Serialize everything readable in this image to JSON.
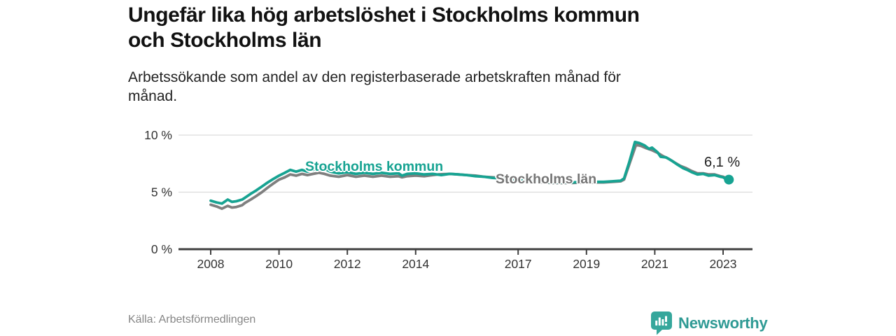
{
  "header": {
    "title_lines": [
      "Ungefär lika hög arbetslöshet i Stockholms kommun",
      "och Stockholms län"
    ],
    "subtitle_lines": [
      "Arbetssökande som andel av den registerbaserade arbetskraften månad för",
      "månad."
    ]
  },
  "chart_data": {
    "type": "line",
    "title": "Ungefär lika hög arbetslöshet i Stockholms kommun och Stockholms län",
    "subtitle": "Arbetssökande som andel av den registerbaserade arbetskraften månad för månad.",
    "xlabel": "",
    "ylabel": "",
    "grid": "horizontal",
    "legend_position": "inline-on-line",
    "axis_color": "#404040",
    "grid_color": "#dcdcdc",
    "tick_label_color": "#333333",
    "x_axis": {
      "range": [
        2007.2,
        2023.8
      ],
      "ticks": [
        {
          "value": 2008,
          "label": "2008"
        },
        {
          "value": 2010,
          "label": "2010"
        },
        {
          "value": 2012,
          "label": "2012"
        },
        {
          "value": 2014,
          "label": "2014"
        },
        {
          "value": 2017,
          "label": "2017"
        },
        {
          "value": 2019,
          "label": "2019"
        },
        {
          "value": 2021,
          "label": "2021"
        },
        {
          "value": 2023,
          "label": "2023"
        }
      ]
    },
    "y_axis": {
      "range": [
        0,
        10.2
      ],
      "ticks": [
        {
          "value": 0,
          "label": "0 %"
        },
        {
          "value": 5,
          "label": "5 %"
        },
        {
          "value": 10,
          "label": "10 %"
        }
      ],
      "gridlines": [
        5,
        10
      ]
    },
    "series": [
      {
        "name": "Stockholms kommun",
        "color": "#17a392",
        "end_dot": true,
        "end_label": "6,1 %",
        "points": [
          [
            2008,
            4.25
          ],
          [
            2008.17,
            4.1
          ],
          [
            2008.33,
            4.0
          ],
          [
            2008.5,
            4.35
          ],
          [
            2008.62,
            4.15
          ],
          [
            2008.75,
            4.2
          ],
          [
            2008.92,
            4.35
          ],
          [
            2009,
            4.5
          ],
          [
            2009.17,
            4.85
          ],
          [
            2009.33,
            5.15
          ],
          [
            2009.5,
            5.5
          ],
          [
            2009.67,
            5.85
          ],
          [
            2009.83,
            6.15
          ],
          [
            2010,
            6.45
          ],
          [
            2010.17,
            6.7
          ],
          [
            2010.33,
            6.95
          ],
          [
            2010.5,
            6.8
          ],
          [
            2010.67,
            6.95
          ],
          [
            2010.83,
            6.8
          ],
          [
            2011,
            6.95
          ],
          [
            2011.17,
            7.2
          ],
          [
            2011.33,
            7.05
          ],
          [
            2011.5,
            6.8
          ],
          [
            2011.75,
            6.65
          ],
          [
            2012,
            6.75
          ],
          [
            2012.25,
            6.6
          ],
          [
            2012.5,
            6.7
          ],
          [
            2012.75,
            6.6
          ],
          [
            2013,
            6.7
          ],
          [
            2013.25,
            6.6
          ],
          [
            2013.5,
            6.65
          ],
          [
            2013.6,
            6.45
          ],
          [
            2013.75,
            6.6
          ],
          [
            2014,
            6.65
          ],
          [
            2014.25,
            6.55
          ],
          [
            2014.5,
            6.6
          ],
          [
            2014.75,
            6.5
          ],
          [
            2015,
            6.6
          ],
          [
            2015.25,
            6.55
          ],
          [
            2015.5,
            6.5
          ],
          [
            2015.75,
            6.4
          ],
          [
            2016,
            6.35
          ],
          [
            2016.25,
            6.25
          ],
          [
            2016.5,
            6.2
          ],
          [
            2016.75,
            6.1
          ],
          [
            2017,
            6.05
          ],
          [
            2017.25,
            6.0
          ],
          [
            2017.5,
            5.95
          ],
          [
            2017.75,
            5.9
          ],
          [
            2018,
            5.85
          ],
          [
            2018.5,
            5.85
          ],
          [
            2019,
            5.9
          ],
          [
            2019.5,
            5.9
          ],
          [
            2019.75,
            5.95
          ],
          [
            2020,
            6.0
          ],
          [
            2020.1,
            6.2
          ],
          [
            2020.25,
            7.6
          ],
          [
            2020.42,
            9.4
          ],
          [
            2020.55,
            9.3
          ],
          [
            2020.7,
            9.1
          ],
          [
            2020.83,
            8.8
          ],
          [
            2020.92,
            8.9
          ],
          [
            2021.08,
            8.5
          ],
          [
            2021.17,
            8.1
          ],
          [
            2021.33,
            8.05
          ],
          [
            2021.5,
            7.75
          ],
          [
            2021.67,
            7.4
          ],
          [
            2021.83,
            7.1
          ],
          [
            2021.95,
            6.95
          ],
          [
            2022.08,
            6.75
          ],
          [
            2022.25,
            6.55
          ],
          [
            2022.42,
            6.6
          ],
          [
            2022.58,
            6.45
          ],
          [
            2022.75,
            6.5
          ],
          [
            2022.92,
            6.35
          ],
          [
            2023,
            6.3
          ],
          [
            2023.08,
            6.15
          ],
          [
            2023.17,
            6.1
          ]
        ]
      },
      {
        "name": "Stockholms län",
        "color": "#7f7f7f",
        "end_dot": false,
        "end_label": "",
        "points": [
          [
            2008,
            3.9
          ],
          [
            2008.17,
            3.75
          ],
          [
            2008.33,
            3.55
          ],
          [
            2008.5,
            3.8
          ],
          [
            2008.62,
            3.65
          ],
          [
            2008.75,
            3.7
          ],
          [
            2008.92,
            3.85
          ],
          [
            2009,
            4.05
          ],
          [
            2009.17,
            4.35
          ],
          [
            2009.33,
            4.65
          ],
          [
            2009.5,
            5.0
          ],
          [
            2009.67,
            5.4
          ],
          [
            2009.83,
            5.75
          ],
          [
            2010,
            6.1
          ],
          [
            2010.17,
            6.3
          ],
          [
            2010.33,
            6.55
          ],
          [
            2010.5,
            6.45
          ],
          [
            2010.67,
            6.6
          ],
          [
            2010.83,
            6.5
          ],
          [
            2011,
            6.6
          ],
          [
            2011.17,
            6.7
          ],
          [
            2011.33,
            6.6
          ],
          [
            2011.5,
            6.45
          ],
          [
            2011.75,
            6.35
          ],
          [
            2012,
            6.5
          ],
          [
            2012.25,
            6.35
          ],
          [
            2012.5,
            6.45
          ],
          [
            2012.75,
            6.35
          ],
          [
            2013,
            6.45
          ],
          [
            2013.25,
            6.35
          ],
          [
            2013.5,
            6.4
          ],
          [
            2013.6,
            6.3
          ],
          [
            2013.75,
            6.4
          ],
          [
            2014,
            6.45
          ],
          [
            2014.25,
            6.4
          ],
          [
            2014.5,
            6.5
          ],
          [
            2014.65,
            6.55
          ],
          [
            2015,
            6.6
          ],
          [
            2015.25,
            6.55
          ],
          [
            2015.5,
            6.5
          ],
          [
            2015.75,
            6.45
          ],
          [
            2016,
            6.35
          ],
          [
            2016.25,
            6.3
          ],
          [
            2016.5,
            6.25
          ],
          [
            2016.75,
            6.15
          ],
          [
            2017,
            6.05
          ],
          [
            2017.25,
            6.0
          ],
          [
            2017.5,
            5.9
          ],
          [
            2017.75,
            5.85
          ],
          [
            2018,
            5.8
          ],
          [
            2018.5,
            5.8
          ],
          [
            2019,
            5.85
          ],
          [
            2019.5,
            5.85
          ],
          [
            2019.75,
            5.9
          ],
          [
            2020,
            5.95
          ],
          [
            2020.1,
            6.1
          ],
          [
            2020.25,
            7.4
          ],
          [
            2020.45,
            9.15
          ],
          [
            2020.6,
            9.05
          ],
          [
            2020.75,
            8.85
          ],
          [
            2020.9,
            8.7
          ],
          [
            2021.08,
            8.45
          ],
          [
            2021.25,
            8.15
          ],
          [
            2021.42,
            7.9
          ],
          [
            2021.58,
            7.6
          ],
          [
            2021.75,
            7.3
          ],
          [
            2021.92,
            7.1
          ],
          [
            2022.08,
            6.85
          ],
          [
            2022.25,
            6.65
          ],
          [
            2022.42,
            6.65
          ],
          [
            2022.58,
            6.55
          ],
          [
            2022.75,
            6.55
          ],
          [
            2022.92,
            6.4
          ],
          [
            2023,
            6.35
          ],
          [
            2023.08,
            6.25
          ],
          [
            2023.17,
            6.15
          ]
        ]
      }
    ],
    "annotations": {
      "kommun_line_label": "Stockholms kommun",
      "lan_line_label": "Stockholms län",
      "end_value_label": "6,1 %"
    }
  },
  "footer": {
    "source": "Källa: Arbetsförmedlingen",
    "brand_name": "Newsworthy"
  },
  "colors": {
    "accent_teal": "#17a392",
    "line_gray": "#7f7f7f",
    "label_gray": "#757575",
    "brand_teal": "#2f9a94",
    "logo_bubble": "#35a79c",
    "axis": "#404040",
    "grid": "#dcdcdc",
    "title_text": "#111111",
    "muted_text": "#858585"
  }
}
